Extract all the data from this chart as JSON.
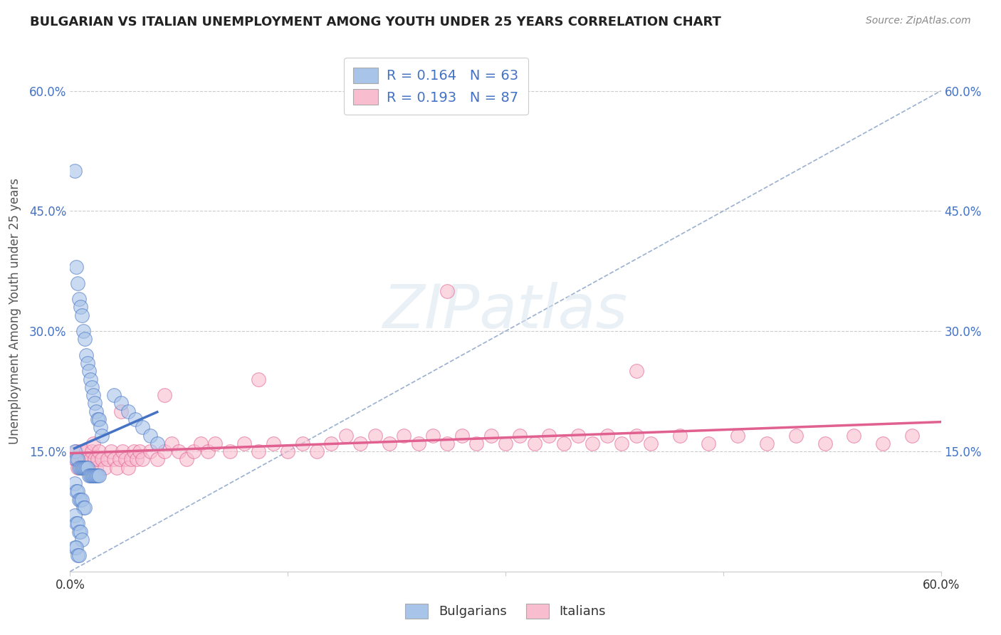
{
  "title": "BULGARIAN VS ITALIAN UNEMPLOYMENT AMONG YOUTH UNDER 25 YEARS CORRELATION CHART",
  "source": "Source: ZipAtlas.com",
  "ylabel": "Unemployment Among Youth under 25 years",
  "xlim": [
    0.0,
    0.6
  ],
  "ylim": [
    0.0,
    0.65
  ],
  "yticks": [
    0.0,
    0.15,
    0.3,
    0.45,
    0.6
  ],
  "ytick_labels": [
    "",
    "15.0%",
    "30.0%",
    "45.0%",
    "60.0%"
  ],
  "xtick_labels_show": [
    "0.0%",
    "60.0%"
  ],
  "legend_r1": "R = 0.164   N = 63",
  "legend_r2": "R = 0.193   N = 87",
  "color_bulgarian": "#A8C4E8",
  "color_italian": "#F9BDD0",
  "color_edge_bulgarian": "#4472C4",
  "color_edge_italian": "#E06090",
  "color_line_bulgarian": "#4472C4",
  "color_line_italian": "#E06090",
  "color_diag": "#A0B8D8",
  "bg_color": "#FFFFFF",
  "bulgarians_x": [
    0.003,
    0.004,
    0.005,
    0.006,
    0.007,
    0.008,
    0.009,
    0.01,
    0.011,
    0.012,
    0.013,
    0.014,
    0.015,
    0.016,
    0.017,
    0.018,
    0.019,
    0.02,
    0.021,
    0.022,
    0.003,
    0.004,
    0.005,
    0.006,
    0.007,
    0.008,
    0.009,
    0.01,
    0.011,
    0.012,
    0.013,
    0.014,
    0.015,
    0.016,
    0.017,
    0.018,
    0.019,
    0.02,
    0.003,
    0.004,
    0.005,
    0.006,
    0.007,
    0.008,
    0.009,
    0.01,
    0.003,
    0.004,
    0.005,
    0.006,
    0.007,
    0.008,
    0.003,
    0.004,
    0.005,
    0.006,
    0.03,
    0.035,
    0.04,
    0.045,
    0.05,
    0.055,
    0.06
  ],
  "bulgarians_y": [
    0.5,
    0.38,
    0.36,
    0.34,
    0.33,
    0.32,
    0.3,
    0.29,
    0.27,
    0.26,
    0.25,
    0.24,
    0.23,
    0.22,
    0.21,
    0.2,
    0.19,
    0.19,
    0.18,
    0.17,
    0.15,
    0.14,
    0.14,
    0.13,
    0.13,
    0.13,
    0.13,
    0.13,
    0.13,
    0.13,
    0.12,
    0.12,
    0.12,
    0.12,
    0.12,
    0.12,
    0.12,
    0.12,
    0.11,
    0.1,
    0.1,
    0.09,
    0.09,
    0.09,
    0.08,
    0.08,
    0.07,
    0.06,
    0.06,
    0.05,
    0.05,
    0.04,
    0.03,
    0.03,
    0.02,
    0.02,
    0.22,
    0.21,
    0.2,
    0.19,
    0.18,
    0.17,
    0.16
  ],
  "italians_x": [
    0.003,
    0.004,
    0.005,
    0.006,
    0.007,
    0.008,
    0.009,
    0.01,
    0.011,
    0.012,
    0.013,
    0.014,
    0.015,
    0.016,
    0.017,
    0.018,
    0.019,
    0.02,
    0.022,
    0.024,
    0.026,
    0.028,
    0.03,
    0.032,
    0.034,
    0.036,
    0.038,
    0.04,
    0.042,
    0.044,
    0.046,
    0.048,
    0.05,
    0.055,
    0.06,
    0.065,
    0.07,
    0.075,
    0.08,
    0.085,
    0.09,
    0.095,
    0.1,
    0.11,
    0.12,
    0.13,
    0.14,
    0.15,
    0.16,
    0.17,
    0.18,
    0.19,
    0.2,
    0.21,
    0.22,
    0.23,
    0.24,
    0.25,
    0.26,
    0.27,
    0.28,
    0.29,
    0.3,
    0.31,
    0.32,
    0.33,
    0.34,
    0.35,
    0.36,
    0.37,
    0.38,
    0.39,
    0.4,
    0.42,
    0.44,
    0.46,
    0.48,
    0.5,
    0.52,
    0.54,
    0.56,
    0.58,
    0.035,
    0.065,
    0.13,
    0.26,
    0.39
  ],
  "italians_y": [
    0.14,
    0.15,
    0.13,
    0.14,
    0.15,
    0.14,
    0.13,
    0.14,
    0.15,
    0.14,
    0.13,
    0.14,
    0.15,
    0.16,
    0.14,
    0.13,
    0.14,
    0.15,
    0.14,
    0.13,
    0.14,
    0.15,
    0.14,
    0.13,
    0.14,
    0.15,
    0.14,
    0.13,
    0.14,
    0.15,
    0.14,
    0.15,
    0.14,
    0.15,
    0.14,
    0.15,
    0.16,
    0.15,
    0.14,
    0.15,
    0.16,
    0.15,
    0.16,
    0.15,
    0.16,
    0.15,
    0.16,
    0.15,
    0.16,
    0.15,
    0.16,
    0.17,
    0.16,
    0.17,
    0.16,
    0.17,
    0.16,
    0.17,
    0.16,
    0.17,
    0.16,
    0.17,
    0.16,
    0.17,
    0.16,
    0.17,
    0.16,
    0.17,
    0.16,
    0.17,
    0.16,
    0.17,
    0.16,
    0.17,
    0.16,
    0.17,
    0.16,
    0.17,
    0.16,
    0.17,
    0.16,
    0.17,
    0.2,
    0.22,
    0.24,
    0.35,
    0.25
  ]
}
